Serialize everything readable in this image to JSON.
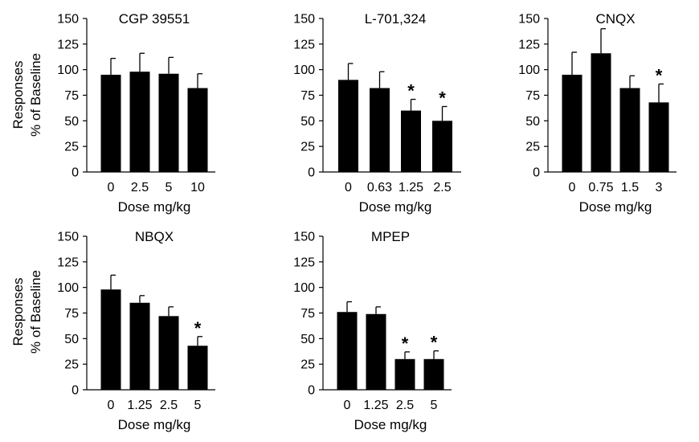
{
  "figure": {
    "ylabel_lines": [
      "Responses",
      "% of Baseline"
    ]
  },
  "chart_data": [
    {
      "type": "bar",
      "title": "CGP 39551",
      "xlabel": "Dose mg/kg",
      "ylabel": "Responses % of Baseline",
      "categories": [
        "0",
        "2.5",
        "5",
        "10"
      ],
      "values": [
        95,
        98,
        96,
        82
      ],
      "errors": [
        16,
        18,
        16,
        14
      ],
      "significant": [
        false,
        false,
        false,
        false
      ],
      "ylim": [
        0,
        150
      ],
      "yticks": [
        "0",
        "25",
        "50",
        "75",
        "100",
        "125",
        "150"
      ],
      "color": "#000000",
      "grid": false
    },
    {
      "type": "bar",
      "title": "L-701,324",
      "xlabel": "Dose mg/kg",
      "ylabel": "",
      "categories": [
        "0",
        "0.63",
        "1.25",
        "2.5"
      ],
      "values": [
        90,
        82,
        60,
        50
      ],
      "errors": [
        16,
        16,
        11,
        14
      ],
      "significant": [
        false,
        false,
        true,
        true
      ],
      "ylim": [
        0,
        150
      ],
      "yticks": [
        "0",
        "25",
        "50",
        "75",
        "100",
        "125",
        "150"
      ],
      "color": "#000000",
      "grid": false
    },
    {
      "type": "bar",
      "title": "CNQX",
      "xlabel": "Dose mg/kg",
      "ylabel": "",
      "categories": [
        "0",
        "0.75",
        "1.5",
        "3"
      ],
      "values": [
        95,
        116,
        82,
        68
      ],
      "errors": [
        22,
        24,
        12,
        18
      ],
      "significant": [
        false,
        false,
        false,
        true
      ],
      "ylim": [
        0,
        150
      ],
      "yticks": [
        "0",
        "25",
        "50",
        "75",
        "100",
        "125",
        "150"
      ],
      "color": "#000000",
      "grid": false
    },
    {
      "type": "bar",
      "title": "NBQX",
      "xlabel": "Dose mg/kg",
      "ylabel": "Responses % of Baseline",
      "categories": [
        "0",
        "1.25",
        "2.5",
        "5"
      ],
      "values": [
        98,
        85,
        72,
        43
      ],
      "errors": [
        14,
        7,
        9,
        9
      ],
      "significant": [
        false,
        false,
        false,
        true
      ],
      "ylim": [
        0,
        150
      ],
      "yticks": [
        "0",
        "25",
        "50",
        "75",
        "100",
        "125",
        "150"
      ],
      "color": "#000000",
      "grid": false
    },
    {
      "type": "bar",
      "title": "MPEP",
      "xlabel": "Dose mg/kg",
      "ylabel": "",
      "categories": [
        "0",
        "1.25",
        "2.5",
        "5"
      ],
      "values": [
        76,
        74,
        30,
        30
      ],
      "errors": [
        10,
        7,
        7,
        8
      ],
      "significant": [
        false,
        false,
        true,
        true
      ],
      "ylim": [
        0,
        150
      ],
      "yticks": [
        "0",
        "25",
        "50",
        "75",
        "100",
        "125",
        "150"
      ],
      "color": "#000000",
      "grid": false
    }
  ]
}
